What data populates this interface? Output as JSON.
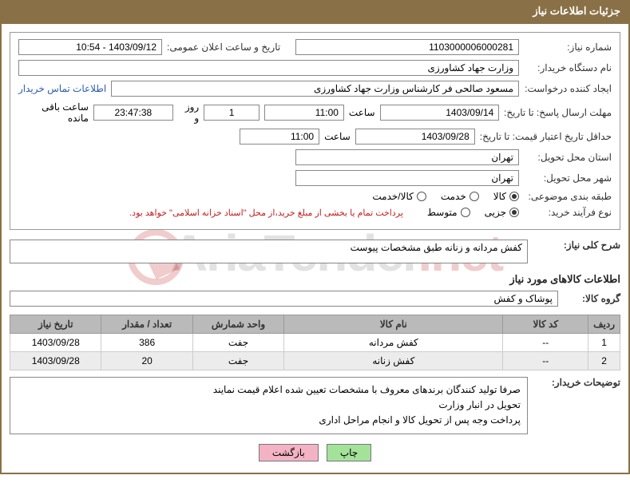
{
  "panel": {
    "title": "جزئیات اطلاعات نیاز"
  },
  "fields": {
    "need_no_label": "شماره نیاز:",
    "need_no": "1103000006000281",
    "announce_datetime_label": "تاریخ و ساعت اعلان عمومی:",
    "announce_datetime": "1403/09/12 - 10:54",
    "buyer_org_label": "نام دستگاه خریدار:",
    "buyer_org": "وزارت جهاد کشاورزی",
    "requester_label": "ایجاد کننده درخواست:",
    "requester": "مسعود صالحی فر کارشناس وزارت جهاد کشاورزی",
    "contact_link": "اطلاعات تماس خریدار",
    "deadline_label": "مهلت ارسال پاسخ: تا تاریخ:",
    "deadline_date": "1403/09/14",
    "time_label": "ساعت",
    "deadline_time": "11:00",
    "days_count": "1",
    "days_and": "روز و",
    "countdown": "23:47:38",
    "remaining_label": "ساعت باقی مانده",
    "validity_label": "حداقل تاریخ اعتبار قیمت: تا تاریخ:",
    "validity_date": "1403/09/28",
    "validity_time": "11:00",
    "province_label": "استان محل تحویل:",
    "province": "تهران",
    "city_label": "شهر محل تحویل:",
    "city": "تهران",
    "category_label": "طبقه بندی موضوعی:",
    "cat_kala": "کالا",
    "cat_khedmat": "خدمت",
    "cat_kala_khedmat": "کالا/خدمت",
    "purchase_type_label": "نوع فرآیند خرید:",
    "pt_jozei": "جزیی",
    "pt_motevaset": "متوسط",
    "payment_note": "پرداخت تمام یا بخشی از مبلغ خرید،از محل \"اسناد خزانه اسلامی\" خواهد بود.",
    "overall_label": "شرح کلی نیاز:",
    "overall": "کفش مردانه و زنانه طبق مشخصات پیوست",
    "goods_section_title": "اطلاعات کالاهای مورد نیاز",
    "group_label": "گروه کالا:",
    "group": "پوشاک و کفش",
    "buyer_notes_label": "توضیحات خریدار:",
    "buyer_notes_l1": "صرفا تولید کنندگان برندهای معروف با مشخصات تعیین شده اعلام قیمت نمایند",
    "buyer_notes_l2": "تحویل در انبار وزارت",
    "buyer_notes_l3": "پرداخت وجه پس از تحویل کالا و انجام مراحل اداری"
  },
  "table": {
    "columns": [
      "ردیف",
      "کد کالا",
      "نام کالا",
      "واحد شمارش",
      "تعداد / مقدار",
      "تاریخ نیاز"
    ],
    "col_widths": [
      "5%",
      "14%",
      "36%",
      "15%",
      "15%",
      "15%"
    ],
    "rows": [
      [
        "1",
        "--",
        "کفش مردانه",
        "جفت",
        "386",
        "1403/09/28"
      ],
      [
        "2",
        "--",
        "کفش زنانه",
        "جفت",
        "20",
        "1403/09/28"
      ]
    ]
  },
  "buttons": {
    "print": "چاپ",
    "back": "بازگشت"
  },
  "radios": {
    "category_selected": "kala",
    "purchase_selected": "jozei"
  },
  "watermark": {
    "text1": "AriaTender",
    "text2": ".net"
  },
  "colors": {
    "header_bg": "#8a7046",
    "border": "#8a7046",
    "th_bg": "#bababa",
    "row_even": "#ececec",
    "note_red": "#c01f1f",
    "link": "#2a5db0"
  }
}
